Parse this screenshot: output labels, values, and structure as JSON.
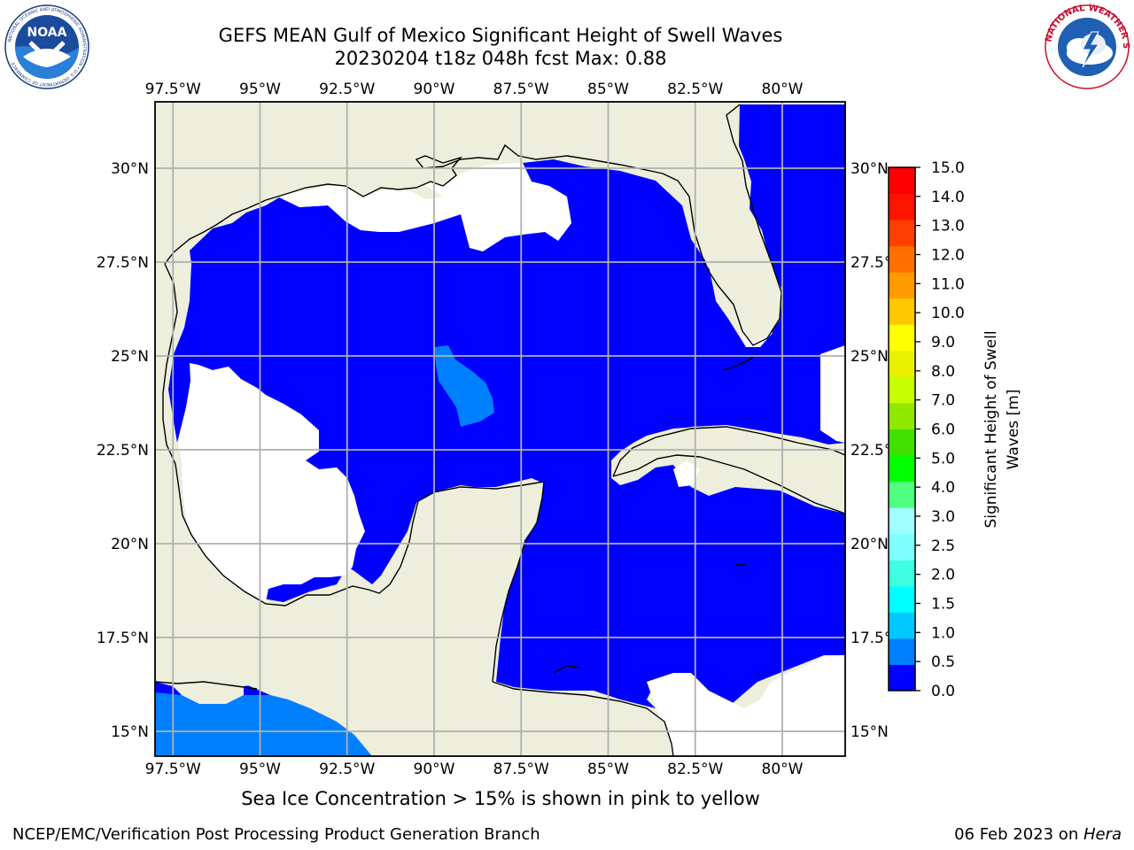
{
  "header": {
    "title_line1": "GEFS MEAN Gulf of Mexico Significant Height of Swell Waves",
    "title_line2": "20230204 t18z 048h fcst   Max: 0.88"
  },
  "logos": {
    "left": {
      "name": "NOAA",
      "ring_text": "NATIONAL OCEANIC AND ATMOSPHERIC ADMINISTRATION • U.S. DEPARTMENT OF COMMERCE"
    },
    "right": {
      "name": "NATIONAL WEATHER SERVICE"
    }
  },
  "map": {
    "lon_labels": [
      "97.5°W",
      "95°W",
      "92.5°W",
      "90°W",
      "87.5°W",
      "85°W",
      "82.5°W",
      "80°W"
    ],
    "lat_labels": [
      "30°N",
      "27.5°N",
      "25°N",
      "22.5°N",
      "20°N",
      "17.5°N",
      "15°N"
    ],
    "lon_values": [
      -97.5,
      -95,
      -92.5,
      -90,
      -87.5,
      -85,
      -82.5,
      -80
    ],
    "lat_values": [
      30,
      27.5,
      25,
      22.5,
      20,
      17.5,
      15
    ],
    "colors": {
      "land": "#eeeedd",
      "ocean_low": "#0000ff",
      "ocean_mid": "#0080ff",
      "no_data": "#ffffff",
      "grid": "#b0b0b0"
    }
  },
  "colorbar": {
    "label": "Significant Height of Swell Waves [m]",
    "ticks": [
      "0.0",
      "0.5",
      "1.0",
      "1.5",
      "2.0",
      "2.5",
      "3.0",
      "4.0",
      "5.0",
      "6.0",
      "7.0",
      "8.0",
      "9.0",
      "10.0",
      "11.0",
      "12.0",
      "13.0",
      "14.0",
      "15.0"
    ],
    "colors": [
      "#0000ff",
      "#0080ff",
      "#00c8ff",
      "#00ffff",
      "#40ffe0",
      "#80ffff",
      "#a0ffff",
      "#50ff80",
      "#00ff00",
      "#40e000",
      "#90e800",
      "#c8ff00",
      "#e8f000",
      "#ffff00",
      "#ffc800",
      "#ff9b00",
      "#ff7000",
      "#ff4000",
      "#ff1400",
      "#ff0000"
    ]
  },
  "footer": {
    "sea_ice_note": "Sea Ice Concentration > 15% is shown in pink to yellow",
    "branch": "NCEP/EMC/Verification Post Processing Product Generation Branch",
    "date": "06 Feb 2023 on ",
    "host": "Hera"
  }
}
